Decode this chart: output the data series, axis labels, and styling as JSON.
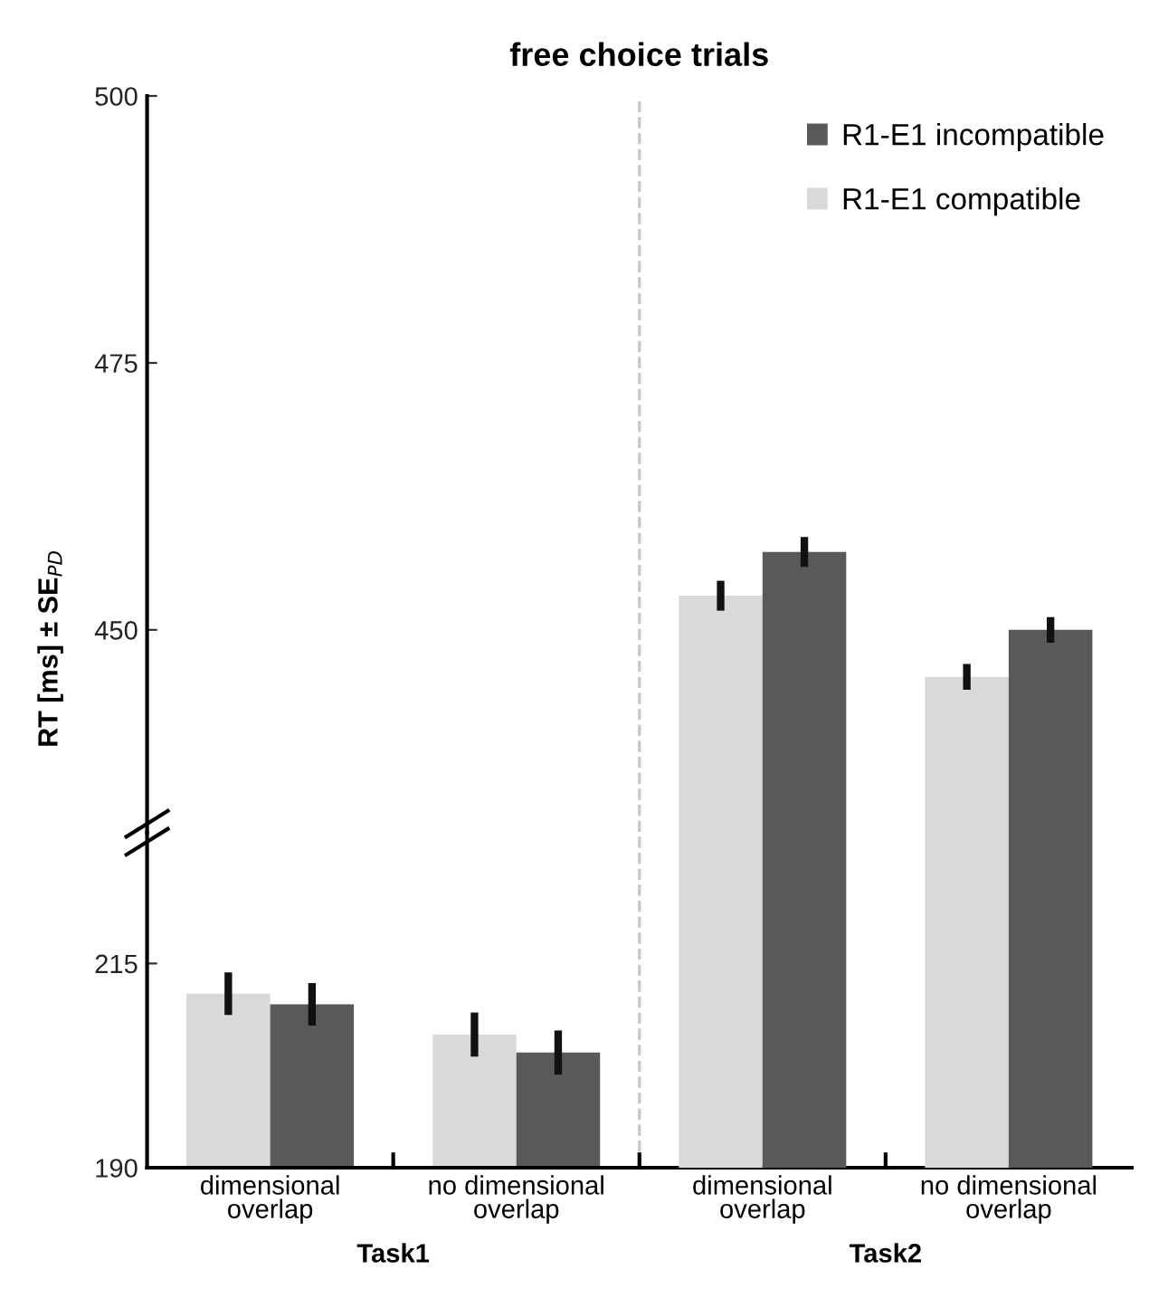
{
  "chart_data": [
    {
      "type": "bar",
      "title": "free choice trials",
      "ylabel": "RT [ms] ± SE$_{PD}$",
      "categories": [
        null,
        null,
        null,
        null
      ],
      "series": [
        {
          "name": "R1-E1 compatible",
          "color": "#d9d9d9",
          "values": [
            null,
            null,
            453.2,
            445.6
          ],
          "errors": [
            null,
            null,
            1.4,
            1.2
          ]
        },
        {
          "name": "R1-E1 incompatible",
          "color": "#595959",
          "values": [
            null,
            null,
            457.3,
            450.0
          ],
          "errors": [
            null,
            null,
            1.4,
            1.2
          ]
        }
      ],
      "ylim": [
        431,
        500
      ],
      "yticks": [
        450,
        475,
        500
      ],
      "tick_labels": "y",
      "legend": "top right",
      "grid": false
    },
    {
      "type": "bar",
      "categories": [
        "dimensional\noverlap",
        "no dimensional\noverlap",
        "dimensional\noverlap",
        "no dimensional\noverlap"
      ],
      "series": [
        {
          "color": "#d9d9d9",
          "values": [
            211.3,
            206.3,
            null,
            null
          ],
          "errors": [
            2.6,
            2.7,
            null,
            null
          ]
        },
        {
          "color": "#595959",
          "values": [
            210.0,
            204.1,
            null,
            null
          ],
          "errors": [
            2.6,
            2.7,
            null,
            null
          ]
        }
      ],
      "ylim": [
        190,
        231
      ],
      "yticks": [
        190,
        215
      ],
      "annotations": [
        "Task1",
        "Task2"
      ],
      "grid": false
    }
  ]
}
